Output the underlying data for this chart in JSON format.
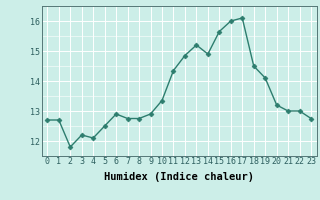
{
  "x": [
    0,
    1,
    2,
    3,
    4,
    5,
    6,
    7,
    8,
    9,
    10,
    11,
    12,
    13,
    14,
    15,
    16,
    17,
    18,
    19,
    20,
    21,
    22,
    23
  ],
  "y": [
    12.7,
    12.7,
    11.8,
    12.2,
    12.1,
    12.5,
    12.9,
    12.75,
    12.75,
    12.9,
    13.35,
    14.35,
    14.85,
    15.2,
    14.9,
    15.65,
    16.0,
    16.1,
    14.5,
    14.1,
    13.2,
    13.0,
    13.0,
    12.75
  ],
  "line_color": "#2d7d6e",
  "marker": "D",
  "marker_size": 2.5,
  "xlabel": "Humidex (Indice chaleur)",
  "xlim": [
    -0.5,
    23.5
  ],
  "ylim": [
    11.5,
    16.5
  ],
  "yticks": [
    12,
    13,
    14,
    15,
    16
  ],
  "xticks": [
    0,
    1,
    2,
    3,
    4,
    5,
    6,
    7,
    8,
    9,
    10,
    11,
    12,
    13,
    14,
    15,
    16,
    17,
    18,
    19,
    20,
    21,
    22,
    23
  ],
  "bg_color": "#cceee8",
  "grid_color": "#ffffff",
  "tick_fontsize": 6,
  "xlabel_fontsize": 7.5,
  "line_width": 1.0
}
